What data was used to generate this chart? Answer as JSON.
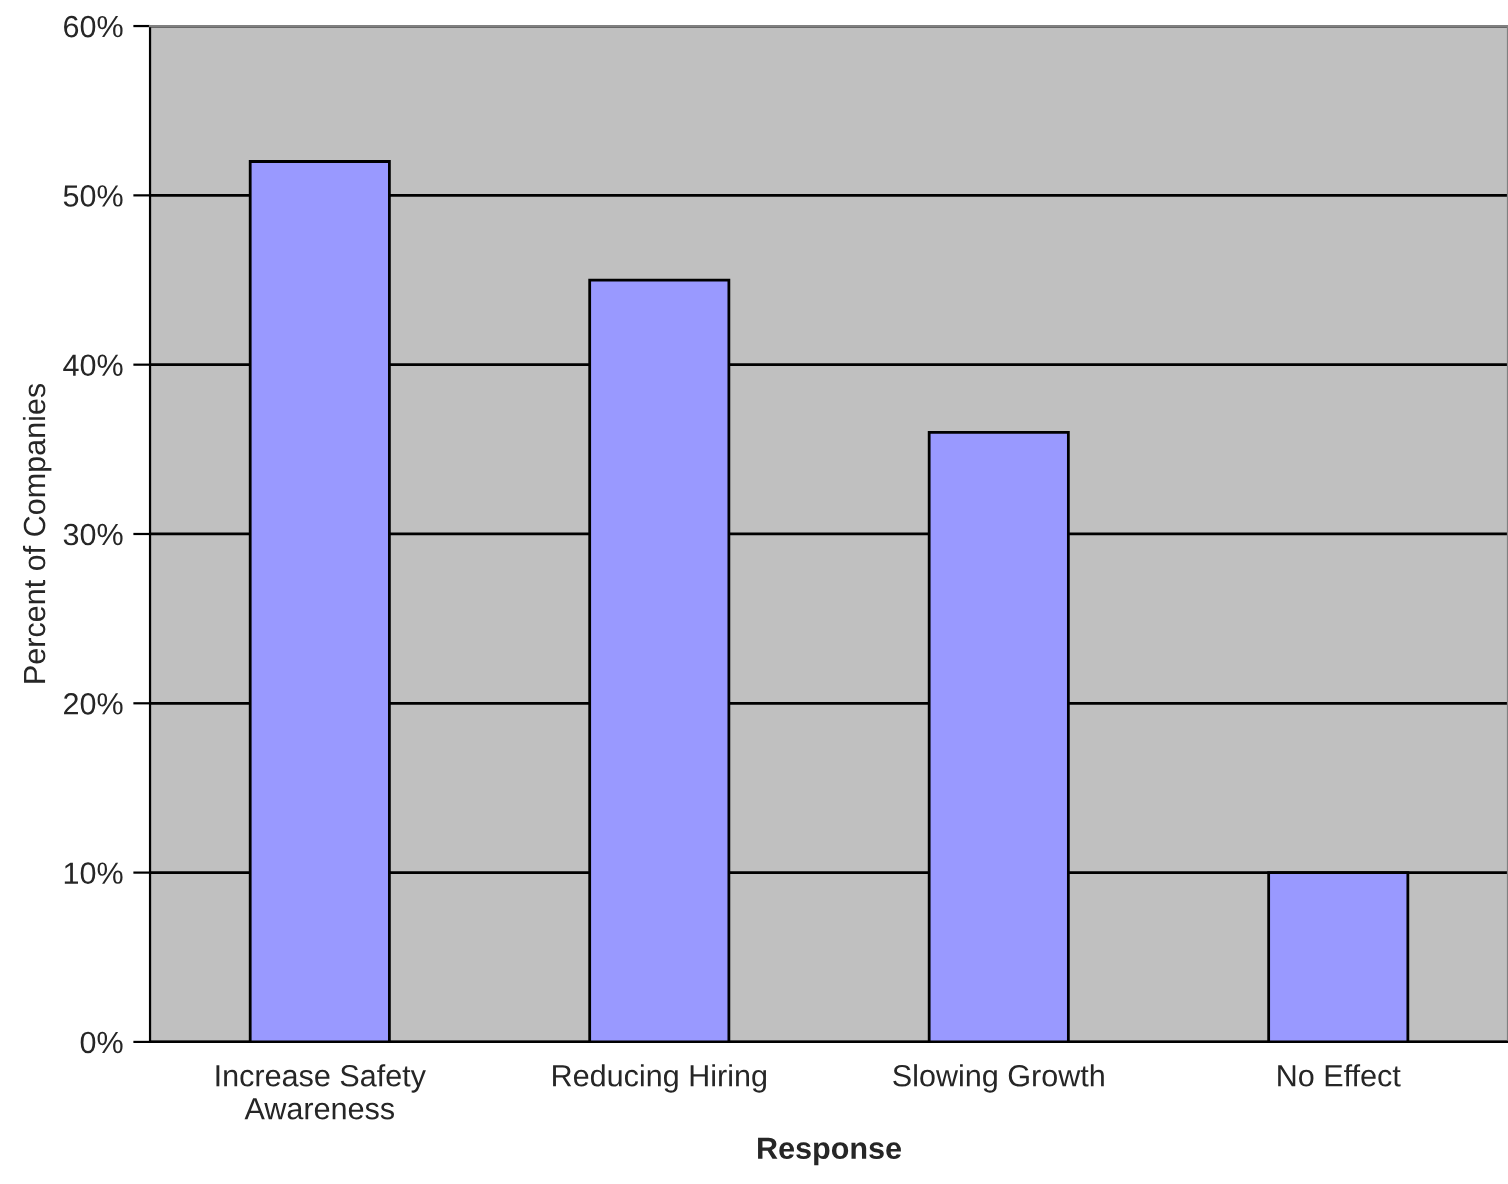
{
  "chart_data": {
    "type": "bar",
    "xlabel": "Response",
    "ylabel": "Percent of Companies",
    "categories": [
      "Increase Safety\nAwareness",
      "Reducing Hiring",
      "Slowing Growth",
      "No Effect"
    ],
    "values": [
      52,
      45,
      36,
      10
    ],
    "color": "#9999ff",
    "ylim": [
      0,
      60
    ],
    "yticks": [
      {
        "value": 0,
        "label": "0%"
      },
      {
        "value": 10,
        "label": "10%"
      },
      {
        "value": 20,
        "label": "20%"
      },
      {
        "value": 30,
        "label": "30%"
      },
      {
        "value": 40,
        "label": "40%"
      },
      {
        "value": 50,
        "label": "50%"
      },
      {
        "value": 60,
        "label": "60%"
      }
    ],
    "grid": "y",
    "legend": false
  }
}
